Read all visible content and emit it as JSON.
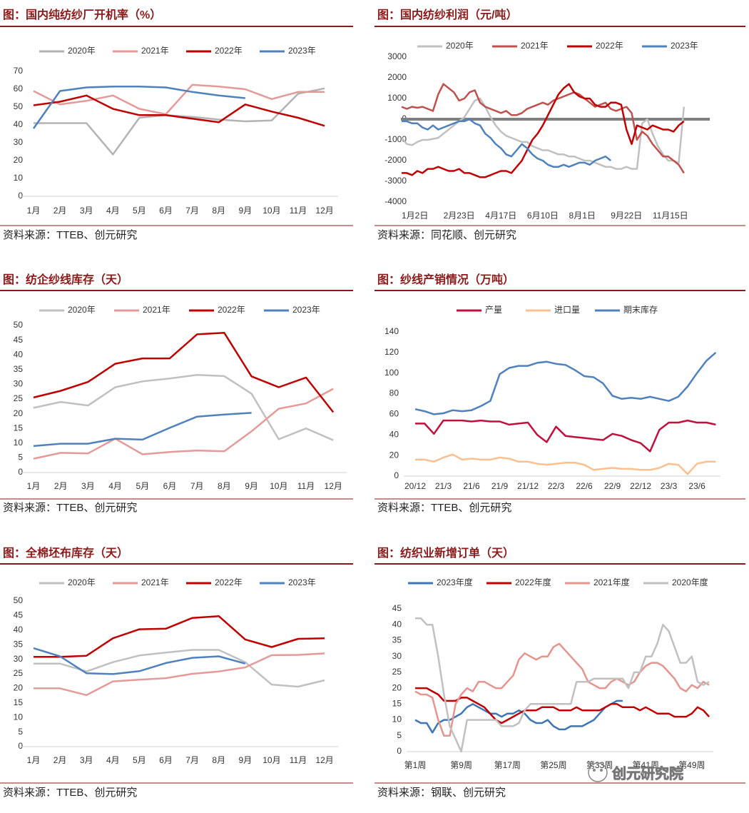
{
  "chart_data": [
    {
      "type": "line",
      "title": "图：国内纯纺纱厂开机率（%）",
      "source": "资料来源：TTEB、创元研究",
      "categories": [
        "1月",
        "2月",
        "3月",
        "4月",
        "5月",
        "6月",
        "7月",
        "8月",
        "9月",
        "10月",
        "11月",
        "12月"
      ],
      "ylim": [
        0,
        70
      ],
      "yticks": [
        0,
        10,
        20,
        30,
        40,
        50,
        60,
        70
      ],
      "legend": "top",
      "series": [
        {
          "name": "2020年",
          "color": "#b3b3b3",
          "values": [
            41,
            41,
            41,
            23.5,
            44,
            45.5,
            44.5,
            43,
            42,
            42.5,
            57.5,
            60.5
          ]
        },
        {
          "name": "2021年",
          "color": "#e39a98",
          "values": [
            59,
            51.5,
            53.5,
            56.5,
            49,
            46,
            62.5,
            61.5,
            60,
            54.5,
            58.5,
            58.5
          ]
        },
        {
          "name": "2022年",
          "color": "#c00000",
          "values": [
            51,
            53,
            56.5,
            49,
            45.5,
            45.5,
            43.5,
            41.5,
            51.5,
            47.5,
            44,
            39.5
          ]
        },
        {
          "name": "2023年",
          "color": "#4f81bd",
          "values": [
            38,
            59,
            61,
            61.5,
            61.5,
            61,
            58.5,
            56.5,
            55,
            null,
            null,
            null
          ]
        }
      ]
    },
    {
      "type": "line",
      "title": "图：国内纺纱利润（元/吨）",
      "source": "资料来源：同花顺、创元研究",
      "categories": [
        "1月2日",
        null,
        null,
        null,
        null,
        null,
        null,
        null,
        "2月23日",
        null,
        null,
        null,
        null,
        null,
        null,
        null,
        "4月17日",
        null,
        null,
        null,
        null,
        null,
        null,
        null,
        "6月10日",
        null,
        null,
        null,
        null,
        null,
        null,
        null,
        "8月1日",
        null,
        null,
        null,
        null,
        null,
        null,
        null,
        "9月22日",
        null,
        null,
        null,
        null,
        null,
        null,
        null,
        "11月15日",
        null,
        null,
        null,
        null,
        null,
        null
      ],
      "ylim": [
        -4000,
        3000
      ],
      "yticks": [
        -4000,
        -3000,
        -2000,
        -1000,
        0,
        1000,
        2000,
        3000
      ],
      "legend": "top",
      "series": [
        {
          "name": "2020年",
          "color": "#c0c0c0",
          "values": [
            -900,
            -1200,
            -1250,
            -1100,
            -1000,
            -1000,
            -950,
            -900,
            -700,
            -500,
            -300,
            -100,
            100,
            500,
            900,
            1000,
            600,
            100,
            -300,
            -600,
            -800,
            -900,
            -1000,
            -1100,
            -1100,
            -1300,
            -1400,
            -1500,
            -1500,
            -1600,
            -1700,
            -1700,
            -1800,
            -1800,
            -1900,
            -2000,
            -2000,
            -2100,
            -2200,
            -2300,
            -2300,
            -2400,
            -2400,
            -2300,
            -2400,
            -2400,
            -200,
            0,
            -700,
            -1300,
            -1700,
            -2000,
            -2000,
            -2100,
            600
          ]
        },
        {
          "name": "2021年",
          "color": "#c0504d",
          "values": [
            600,
            500,
            600,
            550,
            600,
            500,
            400,
            1200,
            1700,
            1500,
            1300,
            900,
            1000,
            1300,
            1400,
            800,
            600,
            500,
            400,
            300,
            400,
            200,
            200,
            300,
            500,
            600,
            700,
            800,
            700,
            900,
            1000,
            1100,
            1200,
            1300,
            1200,
            1000,
            800,
            600,
            700,
            800,
            500,
            400,
            500,
            600,
            300,
            -1000,
            -600,
            -800,
            -1200,
            -1500,
            -1800,
            -1800,
            -2000,
            -2200,
            -2600
          ]
        },
        {
          "name": "2022年",
          "color": "#c00000",
          "values": [
            -2600,
            -2600,
            -2700,
            -2500,
            -2600,
            -2400,
            -2400,
            -2300,
            -2400,
            -2500,
            -2500,
            -2400,
            -2600,
            -2600,
            -2700,
            -2800,
            -2800,
            -2700,
            -2600,
            -2500,
            -2500,
            -2600,
            -2300,
            -2000,
            -1500,
            -1000,
            -700,
            -300,
            200,
            700,
            1200,
            1500,
            1700,
            1300,
            1100,
            1000,
            1000,
            700,
            600,
            600,
            800,
            800,
            700,
            -500,
            -1200,
            -300,
            -400,
            -500,
            -300,
            -400,
            -500,
            -500,
            -600,
            -300,
            -100
          ]
        },
        {
          "name": "2023年",
          "color": "#4f81bd",
          "values": [
            -100,
            -100,
            -200,
            -200,
            -400,
            -500,
            -300,
            -500,
            -400,
            -300,
            -200,
            -100,
            -100,
            0,
            -200,
            -300,
            -700,
            -900,
            -1200,
            -1400,
            -1700,
            -1800,
            -1500,
            -1200,
            -1400,
            -1700,
            -1900,
            -2000,
            -2200,
            -2300,
            -2300,
            -2200,
            -2300,
            -2200,
            -2100,
            -2100,
            -2200,
            -2000,
            -1900,
            -1800,
            -2000,
            null,
            null,
            null,
            null,
            null,
            null,
            null,
            null,
            null,
            null,
            null,
            null,
            null,
            null
          ]
        }
      ]
    },
    {
      "type": "line",
      "title": "图：纺企纱线库存（天）",
      "source": "资料来源：TTEB、创元研究",
      "categories": [
        "1月",
        "2月",
        "3月",
        "4月",
        "5月",
        "6月",
        "7月",
        "8月",
        "9月",
        "10月",
        "11月",
        "12月"
      ],
      "ylim": [
        0,
        50
      ],
      "yticks": [
        0,
        5,
        10,
        15,
        20,
        25,
        30,
        35,
        40,
        45,
        50
      ],
      "legend": "top",
      "series": [
        {
          "name": "2020年",
          "color": "#c0c0c0",
          "values": [
            22,
            24,
            22.8,
            29,
            31,
            32,
            33.2,
            32.8,
            26.8,
            11.3,
            15,
            11
          ]
        },
        {
          "name": "2021年",
          "color": "#e39a98",
          "values": [
            4.7,
            6.7,
            6.5,
            11.5,
            6.2,
            7,
            7.5,
            7.2,
            14,
            21.7,
            23.5,
            28.5
          ]
        },
        {
          "name": "2022年",
          "color": "#c00000",
          "values": [
            25.5,
            27.8,
            30.8,
            37,
            38.8,
            38.8,
            47,
            47.5,
            32.7,
            29,
            32.3,
            20.5
          ]
        },
        {
          "name": "2023年",
          "color": "#4f81bd",
          "values": [
            9,
            9.8,
            9.8,
            11.5,
            11.2,
            15.2,
            19,
            19.7,
            20.3,
            null,
            null,
            null
          ]
        }
      ]
    },
    {
      "type": "line",
      "title": "图：纱线产销情况（万吨）",
      "source": "资料来源：TTEB、创元研究",
      "categories": [
        "20/12",
        null,
        null,
        "21/3",
        null,
        null,
        "21/6",
        null,
        null,
        "21/9",
        null,
        null,
        "21/12",
        null,
        null,
        "22/3",
        null,
        null,
        "22/6",
        null,
        null,
        "22/9",
        null,
        null,
        "22/12",
        null,
        null,
        "23/3",
        null,
        null,
        "23/6",
        null,
        null
      ],
      "ylim": [
        0,
        140
      ],
      "yticks": [
        0,
        20,
        40,
        60,
        80,
        100,
        120,
        140
      ],
      "legend": "top",
      "series": [
        {
          "name": "产量",
          "color": "#c0103c",
          "values": [
            51,
            51,
            41,
            54,
            54,
            54,
            53,
            54,
            53,
            53,
            50,
            51,
            52,
            40,
            33,
            48,
            39,
            38,
            37,
            36,
            35,
            41,
            39,
            35,
            32,
            24,
            45,
            52,
            52,
            54,
            52,
            52,
            50
          ]
        },
        {
          "name": "进口量",
          "color": "#fac08f",
          "values": [
            16,
            16,
            14,
            18,
            21,
            16,
            17,
            16,
            16,
            18,
            17,
            14,
            14,
            12,
            11,
            12,
            13,
            13,
            11,
            6,
            7,
            8,
            7,
            7,
            6,
            6,
            8,
            12,
            11,
            2,
            12,
            14,
            14
          ]
        },
        {
          "name": "期末库存",
          "color": "#4f81bd",
          "values": [
            65,
            63,
            60,
            61,
            64,
            63,
            64,
            68,
            73,
            99,
            105,
            107,
            107,
            110,
            111,
            109,
            108,
            103,
            97,
            96,
            90,
            78,
            75,
            76,
            75,
            77,
            75,
            73,
            77,
            87,
            100,
            112,
            120
          ]
        }
      ]
    },
    {
      "type": "line",
      "title": "图：全棉坯布库存（天）",
      "source": "资料来源：TTEB、创元研究",
      "categories": [
        "1月",
        "2月",
        "3月",
        "4月",
        "5月",
        "6月",
        "7月",
        "8月",
        "9月",
        "10月",
        "11月",
        "12月"
      ],
      "ylim": [
        0,
        50
      ],
      "yticks": [
        0,
        5,
        10,
        15,
        20,
        25,
        30,
        35,
        40,
        45,
        50
      ],
      "legend": "top",
      "series": [
        {
          "name": "2020年",
          "color": "#c0c0c0",
          "values": [
            28.5,
            28.5,
            25.8,
            29,
            31.3,
            32.3,
            33.2,
            33.2,
            29,
            21.3,
            20.6,
            22.8
          ]
        },
        {
          "name": "2021年",
          "color": "#e39a98",
          "values": [
            20,
            20,
            17.7,
            22.4,
            23,
            23.5,
            25,
            25.8,
            27.2,
            31.4,
            31.5,
            32
          ]
        },
        {
          "name": "2022年",
          "color": "#c00000",
          "values": [
            30.8,
            30.8,
            31.2,
            37.2,
            40.3,
            40.5,
            44.2,
            44.8,
            36.8,
            34.2,
            37,
            37.2
          ]
        },
        {
          "name": "2023年",
          "color": "#4f81bd",
          "values": [
            33.8,
            31,
            25.2,
            24.9,
            25.9,
            28.7,
            30.5,
            31,
            28.5,
            null,
            null,
            null
          ]
        }
      ]
    },
    {
      "type": "line",
      "title": "图：纺织业新增订单（天）",
      "source": "资料来源：钢联、创元研究",
      "categories": [
        "第1周",
        null,
        null,
        null,
        null,
        null,
        null,
        null,
        "第9周",
        null,
        null,
        null,
        null,
        null,
        null,
        null,
        "第17周",
        null,
        null,
        null,
        null,
        null,
        null,
        null,
        "第25周",
        null,
        null,
        null,
        null,
        null,
        null,
        null,
        "第33周",
        null,
        null,
        null,
        null,
        null,
        null,
        null,
        "第41周",
        null,
        null,
        null,
        null,
        null,
        null,
        null,
        "第49周",
        null,
        null,
        null
      ],
      "ylim": [
        0,
        45
      ],
      "yticks": [
        0,
        5,
        10,
        15,
        20,
        25,
        30,
        35,
        40,
        45
      ],
      "legend": "top",
      "series": [
        {
          "name": "2023年度",
          "color": "#3f74b5",
          "values": [
            10,
            9,
            9,
            6,
            9,
            10,
            10,
            11,
            12,
            14,
            15,
            14,
            13,
            12,
            12,
            11,
            12,
            12,
            13,
            12,
            10,
            9,
            9,
            10,
            8,
            7,
            7,
            8,
            8,
            8,
            9,
            10,
            12,
            14,
            15,
            16,
            16,
            null,
            null,
            null,
            null,
            null,
            null,
            null,
            null,
            null,
            null,
            null,
            null,
            null,
            null,
            null
          ]
        },
        {
          "name": "2022年度",
          "color": "#c00000",
          "values": [
            20,
            20,
            20,
            19,
            18,
            16,
            16,
            16,
            17,
            17,
            16,
            15,
            14,
            12,
            10,
            9,
            10,
            11,
            12,
            13,
            13,
            13,
            14,
            14,
            14,
            13,
            13,
            13,
            14,
            13,
            13,
            13,
            13,
            14,
            15,
            15,
            14,
            14,
            14,
            13,
            14,
            13,
            12,
            12,
            12,
            11,
            11,
            11,
            12,
            14,
            13,
            11
          ]
        },
        {
          "name": "2021年度",
          "color": "#e5948e",
          "values": [
            19,
            18,
            18,
            17,
            10,
            5,
            5,
            15,
            18,
            20,
            19,
            22,
            22,
            21,
            20,
            20,
            22,
            24,
            29,
            31,
            30,
            29,
            30,
            30,
            33,
            34,
            32,
            30,
            28,
            26,
            22,
            21,
            20,
            20,
            22,
            23,
            22,
            21,
            22,
            25,
            27,
            28,
            28,
            27,
            25,
            23,
            20,
            19,
            21,
            20,
            22,
            21
          ]
        },
        {
          "name": "2020年度",
          "color": "#c0c0c0",
          "values": [
            42,
            42,
            40,
            40,
            30,
            18,
            8,
            4,
            0,
            10,
            10,
            10,
            10,
            10,
            10,
            8,
            8,
            8,
            9,
            13,
            15,
            15,
            15,
            15,
            15,
            15,
            15,
            15,
            22,
            22,
            22,
            23,
            23,
            23,
            23,
            23,
            23,
            20,
            25,
            25,
            30,
            30,
            34,
            40,
            38,
            33,
            28,
            28,
            30,
            22,
            21,
            22
          ]
        }
      ]
    }
  ],
  "watermark": "创元研究院"
}
